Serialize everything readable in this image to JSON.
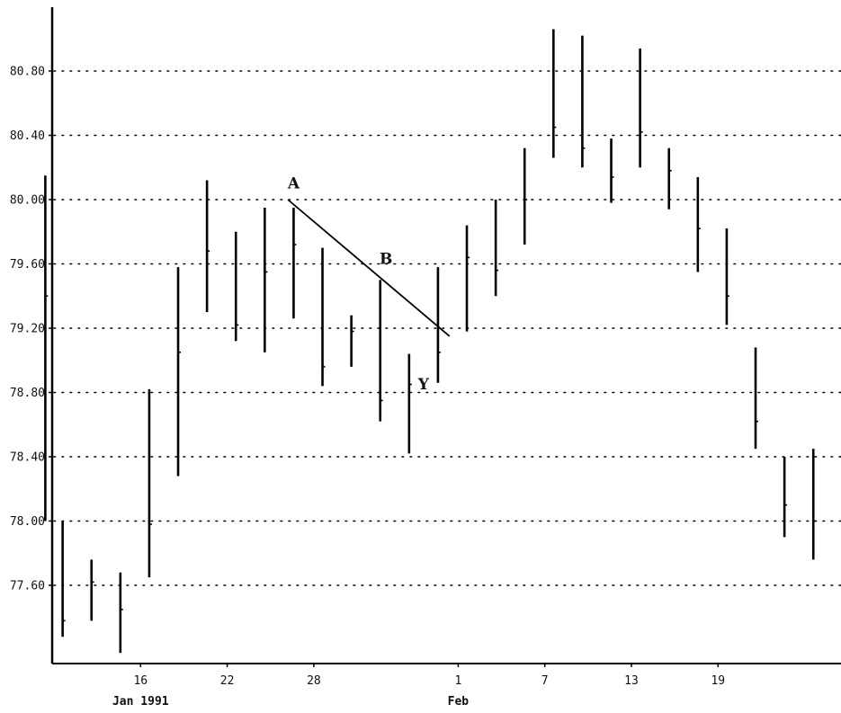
{
  "chart_data": {
    "type": "ohlc-bar",
    "title": "",
    "xlabel": "",
    "ylabel": "",
    "ylim": [
      77.1,
      81.22
    ],
    "grid": "horizontal-dotted",
    "y_ticks": [
      "77.60",
      "78.00",
      "78.40",
      "78.80",
      "79.20",
      "79.60",
      "80.00",
      "80.40",
      "80.80"
    ],
    "x_tick_labels": [
      "16",
      "22",
      "28",
      "1",
      "7",
      "13",
      "19"
    ],
    "x_tick_positions": [
      3,
      6,
      9,
      14,
      17,
      20,
      23
    ],
    "month_labels": [
      {
        "text": "Jan 1991",
        "index": 3
      },
      {
        "text": "Feb",
        "index": 14
      }
    ],
    "bars": [
      {
        "i": -0.3,
        "high": 80.15,
        "low": 78.0,
        "close": 79.4
      },
      {
        "i": 0.3,
        "high": 78.0,
        "low": 77.28,
        "close": 77.38
      },
      {
        "i": 1.3,
        "high": 77.76,
        "low": 77.38,
        "close": 77.62
      },
      {
        "i": 2.3,
        "high": 77.68,
        "low": 77.18,
        "close": 77.45
      },
      {
        "i": 3.3,
        "high": 78.82,
        "low": 77.65,
        "close": 77.98
      },
      {
        "i": 4.3,
        "high": 79.58,
        "low": 78.28,
        "close": 79.05
      },
      {
        "i": 5.3,
        "high": 80.12,
        "low": 79.3,
        "close": 79.68
      },
      {
        "i": 6.3,
        "high": 79.8,
        "low": 79.12,
        "close": 79.22
      },
      {
        "i": 7.3,
        "high": 79.95,
        "low": 79.05,
        "close": 79.55
      },
      {
        "i": 8.3,
        "high": 79.95,
        "low": 79.26,
        "close": 79.72
      },
      {
        "i": 9.3,
        "high": 79.7,
        "low": 78.84,
        "close": 78.96
      },
      {
        "i": 10.3,
        "high": 79.28,
        "low": 78.96,
        "close": 79.18
      },
      {
        "i": 11.3,
        "high": 79.5,
        "low": 78.62,
        "close": 78.75
      },
      {
        "i": 12.3,
        "high": 79.04,
        "low": 78.42,
        "close": 78.85
      },
      {
        "i": 13.3,
        "high": 79.58,
        "low": 78.86,
        "close": 79.05
      },
      {
        "i": 14.3,
        "high": 79.84,
        "low": 79.18,
        "close": 79.64
      },
      {
        "i": 15.3,
        "high": 80.0,
        "low": 79.4,
        "close": 79.56
      },
      {
        "i": 16.3,
        "high": 80.32,
        "low": 79.72,
        "close": 80.0
      },
      {
        "i": 17.3,
        "high": 81.06,
        "low": 80.26,
        "close": 80.45
      },
      {
        "i": 18.3,
        "high": 81.02,
        "low": 80.2,
        "close": 80.32
      },
      {
        "i": 19.3,
        "high": 80.38,
        "low": 79.98,
        "close": 80.14
      },
      {
        "i": 20.3,
        "high": 80.94,
        "low": 80.2,
        "close": 80.42
      },
      {
        "i": 21.3,
        "high": 80.32,
        "low": 79.94,
        "close": 80.18
      },
      {
        "i": 22.3,
        "high": 80.14,
        "low": 79.55,
        "close": 79.82
      },
      {
        "i": 23.3,
        "high": 79.82,
        "low": 79.22,
        "close": 79.4
      },
      {
        "i": 24.3,
        "high": 79.08,
        "low": 78.45,
        "close": 78.62
      },
      {
        "i": 25.3,
        "high": 78.4,
        "low": 77.9,
        "close": 78.1
      },
      {
        "i": 26.3,
        "high": 78.45,
        "low": 77.76,
        "close": 78.0
      }
    ],
    "trendline": {
      "from": {
        "i": 8.1,
        "y": 80.0
      },
      "to": {
        "i": 13.7,
        "y": 79.15
      }
    },
    "annotations": [
      {
        "text": "A",
        "i": 8.3,
        "y": 80.07
      },
      {
        "text": "B",
        "i": 11.5,
        "y": 79.6
      },
      {
        "text": "Y",
        "i": 12.8,
        "y": 78.82
      }
    ]
  }
}
